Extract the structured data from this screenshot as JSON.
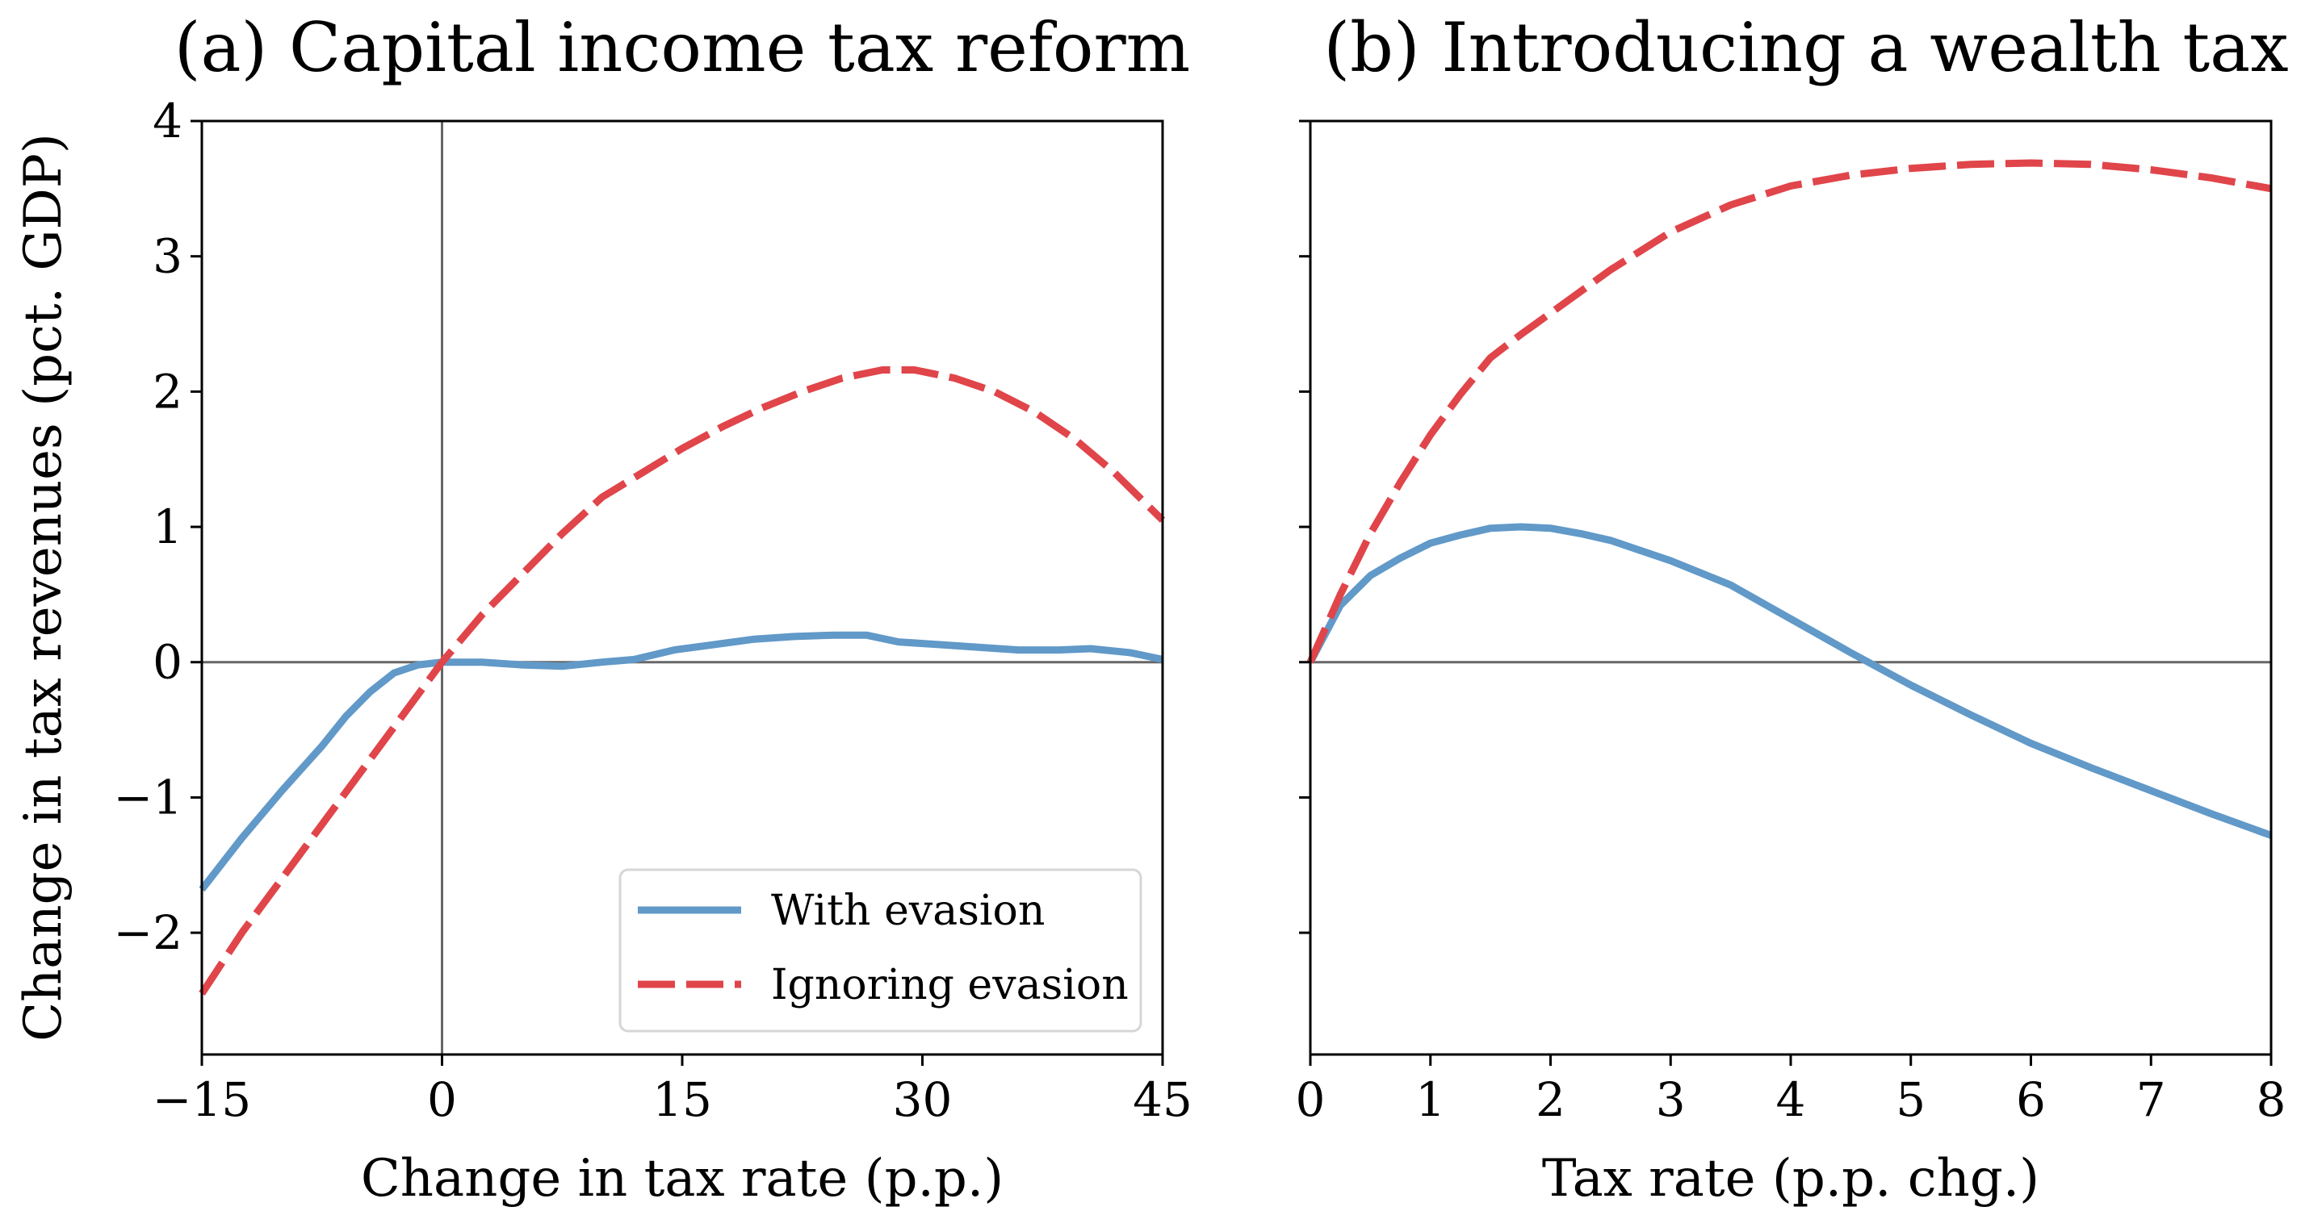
{
  "chart_data": [
    {
      "type": "line",
      "title": "(a) Capital income tax reform",
      "xlabel": "Change in tax rate (p.p.)",
      "ylabel": "Change in tax revenues (pct. GDP)",
      "xlim": [
        -15,
        45
      ],
      "ylim": [
        -2.9,
        4.0
      ],
      "xticks": [
        -15,
        0,
        15,
        30,
        45
      ],
      "xtick_labels": [
        "−15",
        "0",
        "15",
        "30",
        "45"
      ],
      "yticks": [
        -2,
        -1,
        0,
        1,
        2,
        3,
        4
      ],
      "ytick_labels": [
        "−2",
        "−1",
        "0",
        "1",
        "2",
        "3",
        "4"
      ],
      "reference_lines": {
        "x0": true,
        "y0": true
      },
      "legend": {
        "placement": "lower-right",
        "entries": [
          "With evasion",
          "Ignoring evasion"
        ]
      },
      "series": [
        {
          "name": "With evasion",
          "color": "#6199c8",
          "style": "solid",
          "x": [
            -15,
            -12.5,
            -10,
            -7.5,
            -6,
            -4.5,
            -3,
            -1.5,
            0,
            2.5,
            5,
            7.5,
            10,
            12,
            14.5,
            17,
            19.5,
            22,
            24.5,
            26.5,
            28.5,
            31,
            33.5,
            36,
            38.5,
            40.5,
            43,
            45
          ],
          "y": [
            -1.68,
            -1.3,
            -0.95,
            -0.62,
            -0.4,
            -0.22,
            -0.08,
            -0.02,
            0.0,
            0.0,
            -0.02,
            -0.03,
            0.0,
            0.02,
            0.09,
            0.13,
            0.17,
            0.19,
            0.2,
            0.2,
            0.15,
            0.13,
            0.11,
            0.09,
            0.09,
            0.1,
            0.07,
            0.02
          ]
        },
        {
          "name": "Ignoring evasion",
          "color": "#e0454a",
          "style": "dashed",
          "x": [
            -15,
            -12.5,
            -10,
            -7.5,
            -5,
            -2.5,
            0,
            2.5,
            5,
            7.5,
            10,
            12.5,
            15,
            17.5,
            20,
            22.5,
            25,
            27.5,
            29.5,
            32,
            34.5,
            37,
            39.5,
            42,
            45
          ],
          "y": [
            -2.45,
            -2.0,
            -1.6,
            -1.2,
            -0.8,
            -0.4,
            0.0,
            0.35,
            0.65,
            0.95,
            1.22,
            1.4,
            1.58,
            1.74,
            1.88,
            2.0,
            2.1,
            2.16,
            2.16,
            2.1,
            2.0,
            1.85,
            1.65,
            1.4,
            1.05
          ]
        }
      ]
    },
    {
      "type": "line",
      "title": "(b) Introducing a wealth tax",
      "xlabel": "Tax rate (p.p. chg.)",
      "ylabel": "",
      "xlim": [
        0,
        8
      ],
      "ylim": [
        -2.9,
        4.0
      ],
      "xticks": [
        0,
        1,
        2,
        3,
        4,
        5,
        6,
        7,
        8
      ],
      "xtick_labels": [
        "0",
        "1",
        "2",
        "3",
        "4",
        "5",
        "6",
        "7",
        "8"
      ],
      "yticks": [
        -2,
        -1,
        0,
        1,
        2,
        3,
        4
      ],
      "reference_lines": {
        "y0": true
      },
      "series": [
        {
          "name": "With evasion",
          "color": "#6199c8",
          "style": "solid",
          "x": [
            0,
            0.25,
            0.5,
            0.75,
            1.0,
            1.25,
            1.5,
            1.75,
            2.0,
            2.25,
            2.5,
            3.0,
            3.5,
            4.0,
            4.5,
            5.0,
            5.5,
            6.0,
            6.5,
            7.0,
            7.5,
            8.0
          ],
          "y": [
            0.0,
            0.42,
            0.64,
            0.77,
            0.88,
            0.94,
            0.99,
            1.0,
            0.99,
            0.95,
            0.9,
            0.75,
            0.57,
            0.32,
            0.07,
            -0.17,
            -0.39,
            -0.6,
            -0.78,
            -0.95,
            -1.12,
            -1.28
          ]
        },
        {
          "name": "Ignoring evasion",
          "color": "#e0454a",
          "style": "dashed",
          "x": [
            0,
            0.25,
            0.5,
            0.75,
            1.0,
            1.25,
            1.5,
            1.75,
            2.0,
            2.25,
            2.5,
            3.0,
            3.5,
            4.0,
            4.5,
            5.0,
            5.5,
            6.0,
            6.5,
            7.0,
            7.5,
            8.0
          ],
          "y": [
            0.0,
            0.5,
            0.95,
            1.33,
            1.68,
            1.98,
            2.25,
            2.42,
            2.58,
            2.74,
            2.9,
            3.18,
            3.38,
            3.52,
            3.6,
            3.65,
            3.68,
            3.69,
            3.68,
            3.64,
            3.58,
            3.5
          ]
        }
      ]
    }
  ]
}
